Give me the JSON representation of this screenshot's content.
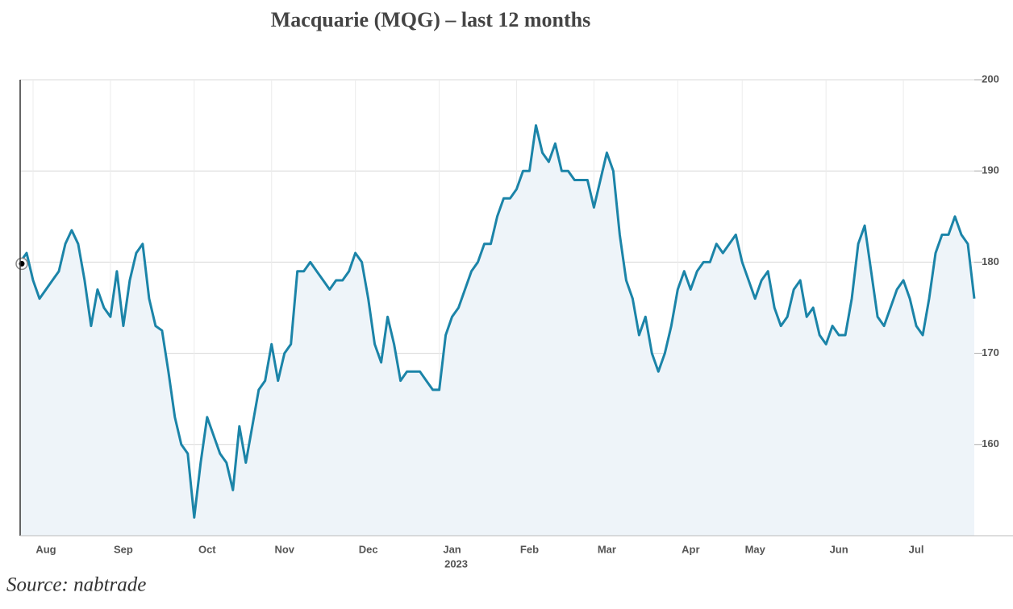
{
  "chart_data": {
    "type": "line",
    "title": "Macquarie (MQG) – last 12 months",
    "source": "Source: nabtrade",
    "year_label": "2023",
    "categories": [
      null,
      null,
      "Aug",
      null,
      null,
      null,
      null,
      null,
      null,
      null,
      null,
      null,
      null,
      null,
      "Sep",
      null,
      null,
      null,
      null,
      null,
      null,
      null,
      null,
      null,
      null,
      null,
      null,
      "Oct",
      null,
      null,
      null,
      null,
      null,
      null,
      null,
      null,
      null,
      null,
      null,
      "Nov",
      null,
      null,
      null,
      null,
      null,
      null,
      null,
      null,
      null,
      null,
      null,
      null,
      "Dec",
      null,
      null,
      null,
      null,
      null,
      null,
      null,
      null,
      null,
      null,
      null,
      null,
      "Jan",
      null,
      null,
      null,
      null,
      null,
      null,
      null,
      null,
      null,
      null,
      null,
      "Feb",
      null,
      null,
      null,
      null,
      null,
      null,
      null,
      null,
      null,
      null,
      null,
      "Mar",
      null,
      null,
      null,
      null,
      null,
      null,
      null,
      null,
      null,
      null,
      null,
      null,
      "Apr",
      null,
      null,
      null,
      null,
      null,
      null,
      null,
      null,
      null,
      "May",
      null,
      null,
      null,
      null,
      null,
      null,
      null,
      null,
      null,
      null,
      null,
      null,
      "Jun",
      null,
      null,
      null,
      null,
      null,
      null,
      null,
      null,
      null,
      null,
      null,
      "Jul",
      null,
      null,
      null,
      null,
      null,
      null,
      null,
      null,
      null,
      null,
      null
    ],
    "values": [
      180,
      181,
      178,
      176,
      177,
      178,
      179,
      182,
      183.5,
      182,
      178,
      173,
      177,
      175,
      174,
      179,
      173,
      178,
      181,
      182,
      176,
      173,
      172.5,
      168,
      163,
      160,
      159,
      152,
      158,
      163,
      161,
      159,
      158,
      155,
      162,
      158,
      162,
      166,
      167,
      171,
      167,
      170,
      171,
      179,
      179,
      180,
      179,
      178,
      177,
      178,
      178,
      179,
      181,
      180,
      176,
      171,
      169,
      174,
      171,
      167,
      168,
      168,
      168,
      167,
      166,
      166,
      172,
      174,
      175,
      177,
      179,
      180,
      182,
      182,
      185,
      187,
      187,
      188,
      190,
      190,
      195,
      192,
      191,
      193,
      190,
      190,
      189,
      189,
      189,
      186,
      189,
      192,
      190,
      183,
      178,
      176,
      172,
      174,
      170,
      168,
      170,
      173,
      177,
      179,
      177,
      179,
      180,
      180,
      182,
      181,
      182,
      183,
      180,
      178,
      176,
      178,
      179,
      175,
      173,
      174,
      177,
      178,
      174,
      175,
      172,
      171,
      173,
      172,
      172,
      176,
      182,
      184,
      179,
      174,
      173,
      175,
      177,
      178,
      176,
      173,
      172,
      176,
      181,
      183,
      183,
      185,
      183,
      182,
      176
    ],
    "color": "#1b84a8",
    "fill_color": "#eef4f9",
    "ylim": [
      150,
      200
    ],
    "yticks": [
      160,
      170,
      180,
      190,
      200
    ],
    "grid": true
  }
}
